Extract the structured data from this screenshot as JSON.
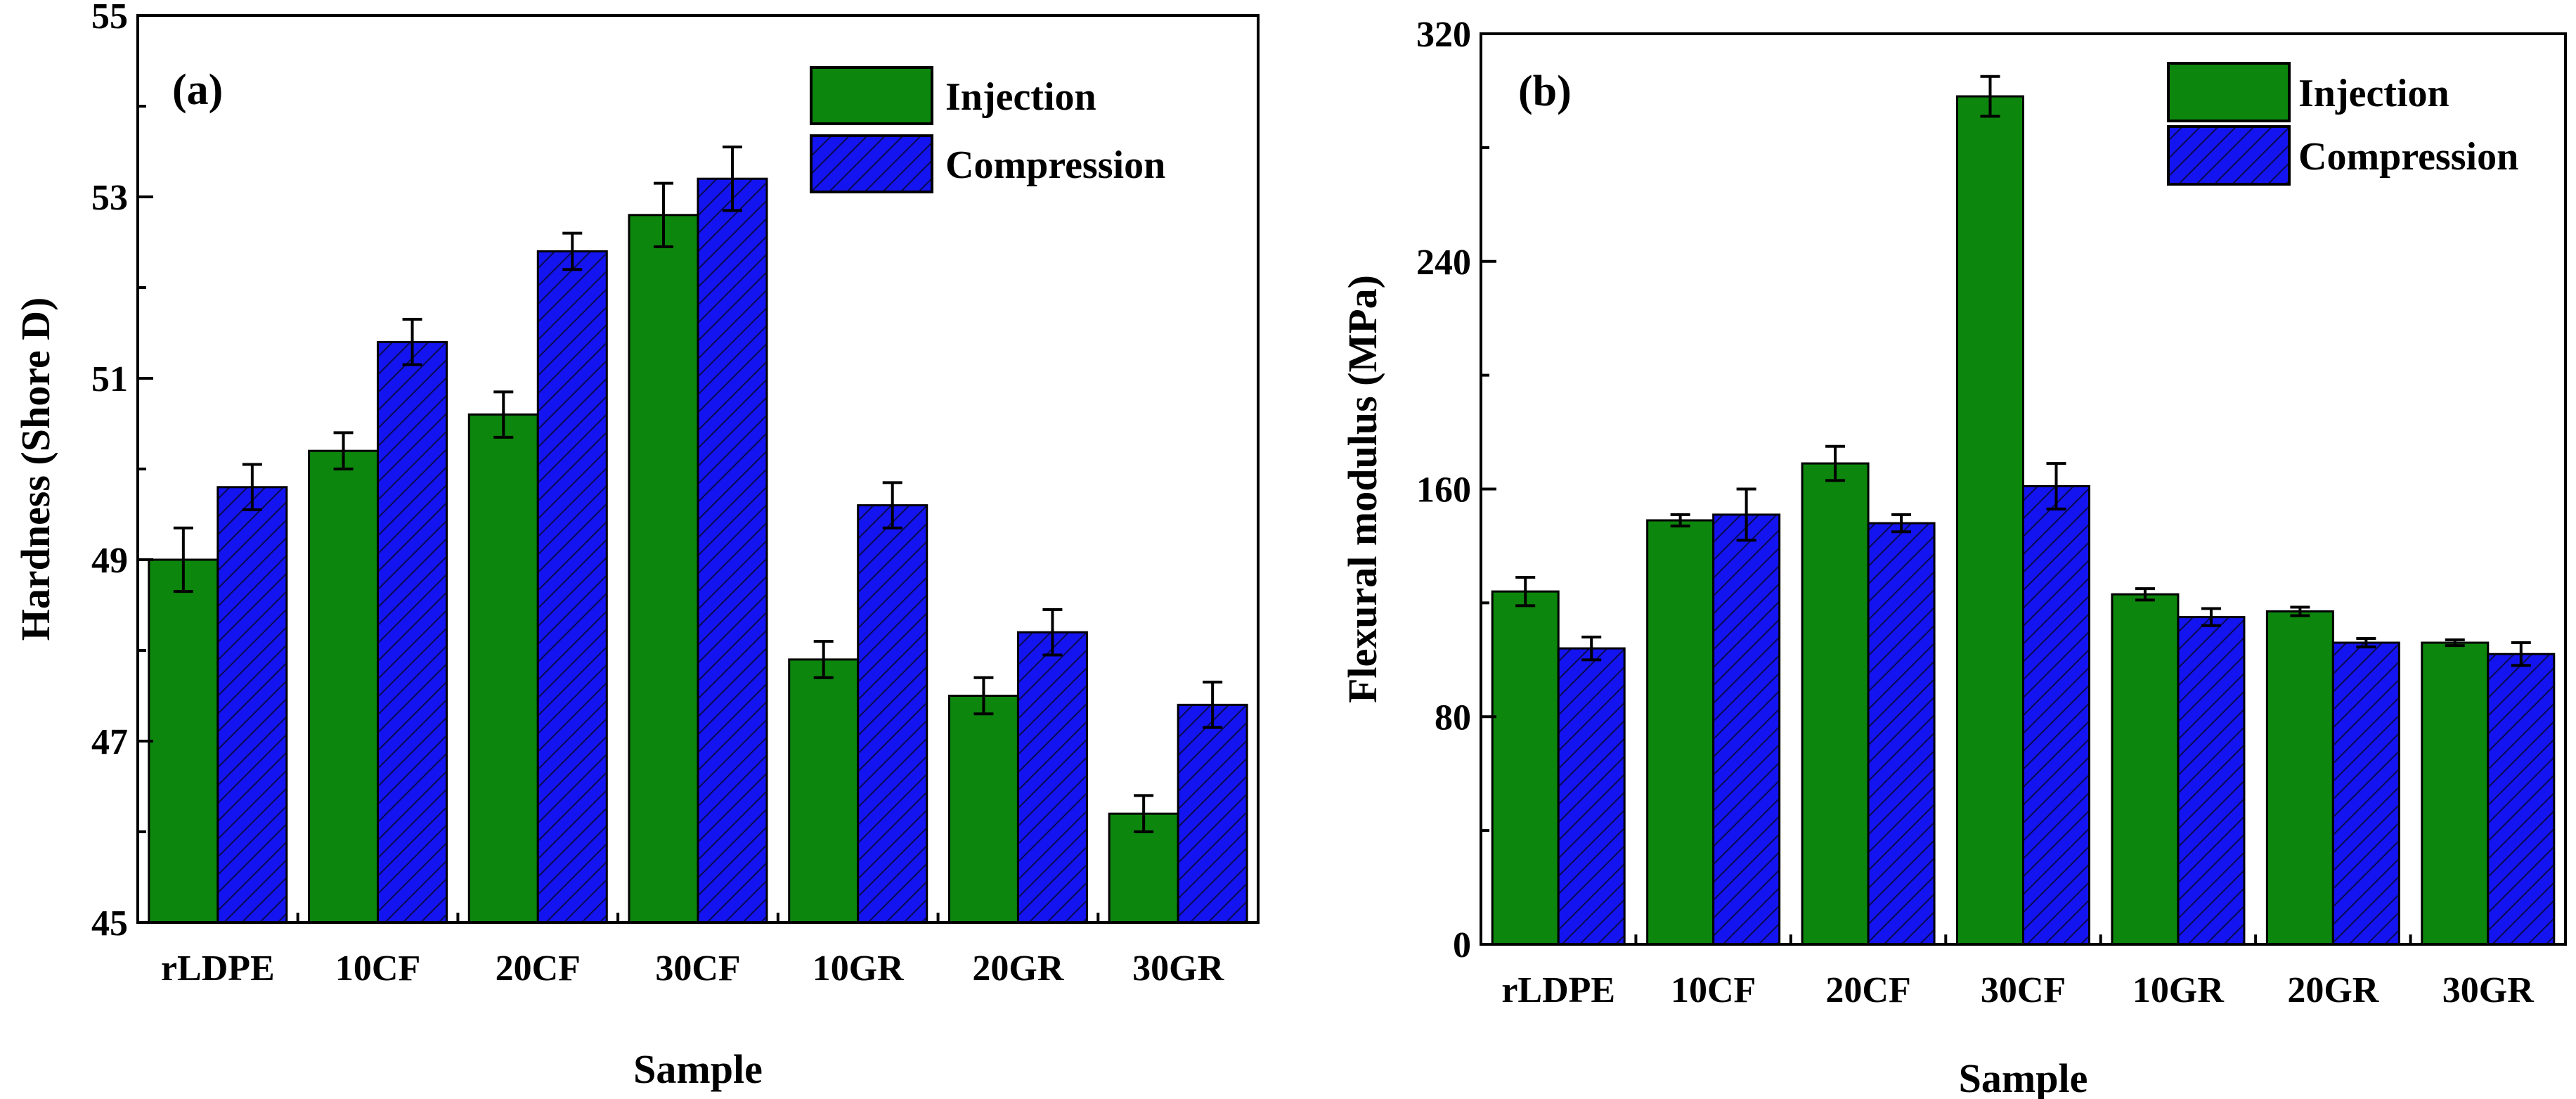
{
  "colors": {
    "injection": "#0d860d",
    "compression": "#1414f0",
    "hatch": "#0a0a50",
    "frame": "#000000"
  },
  "chart_data": [
    {
      "type": "bar",
      "panel_label": "(a)",
      "xlabel": "Sample",
      "ylabel": "Hardness (Shore D)",
      "categories": [
        "rLDPE",
        "10CF",
        "20CF",
        "30CF",
        "10GR",
        "20GR",
        "30GR"
      ],
      "ylim": [
        45,
        55
      ],
      "yticks": [
        "45",
        "47",
        "49",
        "51",
        "53",
        "55"
      ],
      "legend_position": "top-right",
      "series": [
        {
          "name": "Injection",
          "values": [
            49.0,
            50.2,
            50.6,
            52.8,
            47.9,
            47.5,
            46.2
          ],
          "errors": [
            0.35,
            0.2,
            0.25,
            0.35,
            0.2,
            0.2,
            0.2
          ]
        },
        {
          "name": "Compression",
          "values": [
            49.8,
            51.4,
            52.4,
            53.2,
            49.6,
            48.2,
            47.4
          ],
          "errors": [
            0.25,
            0.25,
            0.2,
            0.35,
            0.25,
            0.25,
            0.25
          ]
        }
      ]
    },
    {
      "type": "bar",
      "panel_label": "(b)",
      "xlabel": "Sample",
      "ylabel": "Flexural modulus (MPa)",
      "categories": [
        "rLDPE",
        "10CF",
        "20CF",
        "30CF",
        "10GR",
        "20GR",
        "30GR"
      ],
      "ylim": [
        0,
        320
      ],
      "yticks": [
        "0",
        "80",
        "160",
        "240",
        "320"
      ],
      "legend_position": "top-right",
      "series": [
        {
          "name": "Injection",
          "values": [
            124,
            149,
            169,
            298,
            123,
            117,
            106
          ],
          "errors": [
            5,
            2,
            6,
            7,
            2,
            1.5,
            1
          ]
        },
        {
          "name": "Compression",
          "values": [
            104,
            151,
            148,
            161,
            115,
            106,
            102
          ],
          "errors": [
            4,
            9,
            3,
            8,
            3,
            1.5,
            4
          ]
        }
      ]
    }
  ]
}
